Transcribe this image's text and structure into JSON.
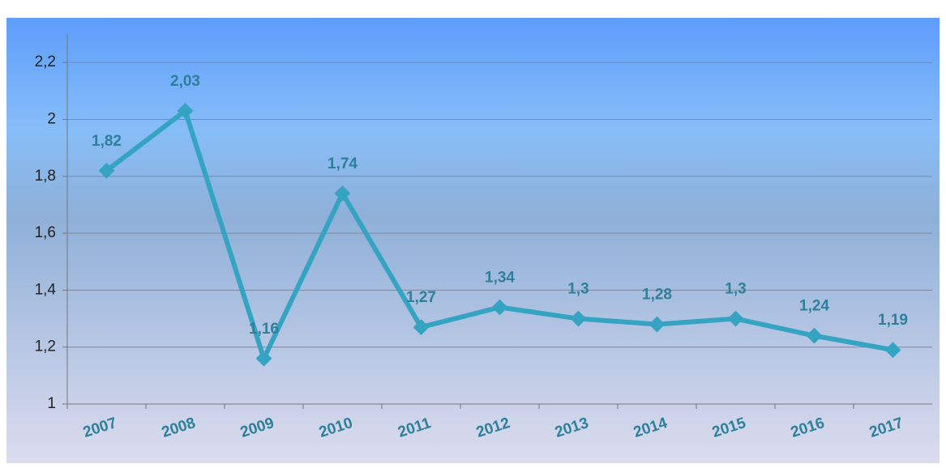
{
  "chart_data": {
    "type": "line",
    "categories": [
      "2007",
      "2008",
      "2009",
      "2010",
      "2011",
      "2012",
      "2013",
      "2014",
      "2015",
      "2016",
      "2017"
    ],
    "series": [
      {
        "name": "Value",
        "color": "#35a4c2",
        "values": [
          1.82,
          2.03,
          1.16,
          1.74,
          1.27,
          1.34,
          1.3,
          1.28,
          1.3,
          1.24,
          1.19
        ],
        "value_labels": [
          "1,82",
          "2,03",
          "1,16",
          "1,74",
          "1,27",
          "1,34",
          "1,3",
          "1,28",
          "1,3",
          "1,24",
          "1,19"
        ]
      }
    ],
    "ylim": [
      1,
      2.3
    ],
    "yticks": [
      1,
      {
        "value": 1.2,
        "label": "1,2"
      },
      {
        "value": 1.4,
        "label": "1,4"
      },
      {
        "value": 1.6,
        "label": "1,6"
      },
      {
        "value": 1.8,
        "label": "1,8"
      },
      2,
      {
        "value": 2.2,
        "label": "2,2"
      }
    ],
    "grid": true
  }
}
